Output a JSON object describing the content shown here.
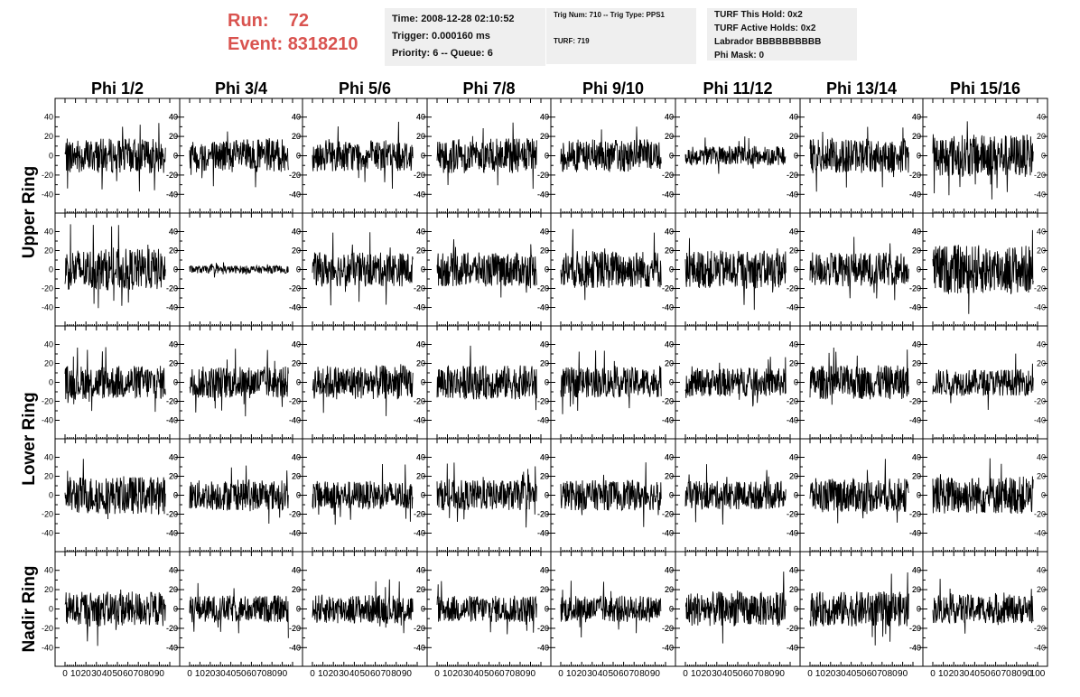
{
  "header": {
    "run_label": "Run:",
    "run_value": "72",
    "event_label": "Event:",
    "event_value": "8318210"
  },
  "info": {
    "time": "Time: 2008-12-28 02:10:52",
    "trigger": "Trigger: 0.000160 ms",
    "priority": "Priority: 6 -- Queue: 6",
    "trig_num": "Trig Num: 710 -- Trig Type: PPS1",
    "turf": "TURF: 719",
    "turf_this_hold": "TURF This Hold: 0x2",
    "turf_active_holds": "TURF Active Holds: 0x2",
    "labrador": "Labrador BBBBBBBBBB",
    "phi_mask": "Phi Mask: 0"
  },
  "colors": {
    "header_text": "#d9534f",
    "info_bg": "#efefef",
    "trace": "#000000"
  },
  "chart_data": {
    "type": "line",
    "layout": "grid of waveform panels, 5 rows x 8 columns",
    "columns": [
      "Phi 1/2",
      "Phi 3/4",
      "Phi 5/6",
      "Phi 7/8",
      "Phi 9/10",
      "Phi 11/12",
      "Phi 13/14",
      "Phi 15/16"
    ],
    "row_groups": [
      "Upper Ring",
      "Lower Ring",
      "Nadir Ring"
    ],
    "rows": 5,
    "xlim": [
      0,
      100
    ],
    "ylim": [
      -50,
      50
    ],
    "x_ticks": [
      0,
      10,
      20,
      30,
      40,
      50,
      60,
      70,
      80,
      90,
      100
    ],
    "y_ticks": [
      -40,
      -20,
      0,
      20,
      40
    ],
    "x_tick_labels": [
      "0",
      "10",
      "20",
      "30",
      "40",
      "50",
      "60",
      "70",
      "80",
      "90",
      "100"
    ],
    "y_tick_labels": [
      "-40",
      "-20",
      "0",
      "20",
      "40"
    ],
    "amplitudes": [
      [
        18,
        17,
        16,
        18,
        17,
        10,
        18,
        22
      ],
      [
        22,
        4,
        18,
        18,
        20,
        20,
        18,
        26
      ],
      [
        18,
        17,
        18,
        18,
        16,
        15,
        18,
        14
      ],
      [
        20,
        16,
        15,
        16,
        16,
        15,
        18,
        20
      ],
      [
        18,
        14,
        15,
        14,
        14,
        18,
        18,
        15
      ]
    ],
    "grid": false,
    "legend": "none"
  }
}
